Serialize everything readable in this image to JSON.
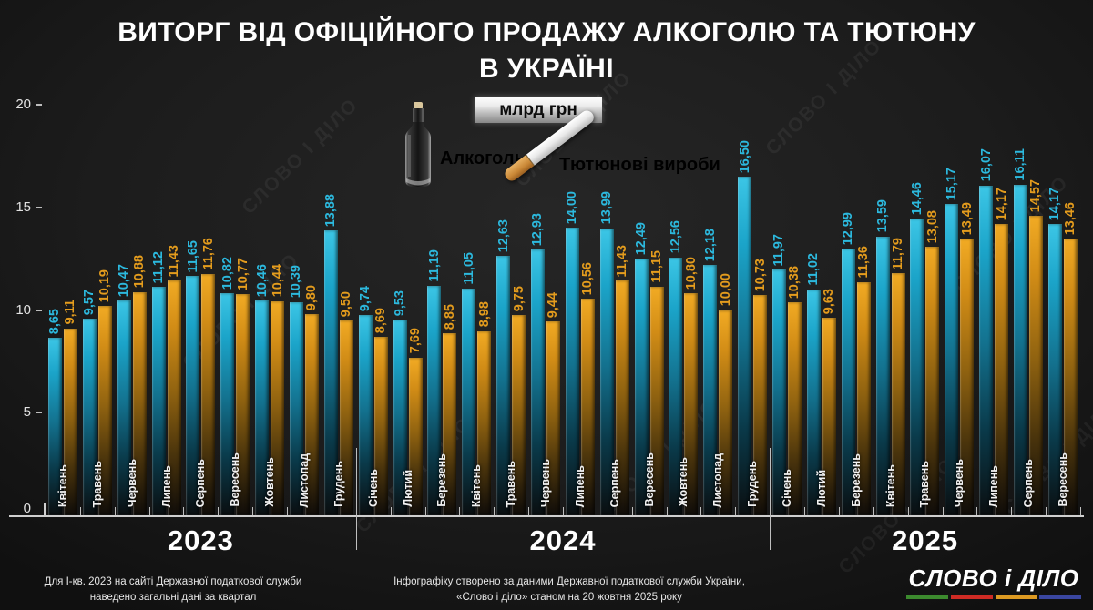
{
  "title": {
    "line1": "ВИТОРГ ВІД ОФІЦІЙНОГО ПРОДАЖУ АЛКОГОЛЮ ТА ТЮТЮНУ",
    "line2": "В УКРАЇНІ"
  },
  "legend": {
    "unit_label": "млрд грн",
    "alcohol_label": "Алкоголь",
    "tobacco_label": "Тютюнові вироби"
  },
  "colors": {
    "alcohol": "#2cb9de",
    "tobacco": "#e49c1d",
    "logo_underline": [
      "#3c8a2e",
      "#cf2b24",
      "#dd9a22",
      "#3a46a0"
    ]
  },
  "watermark_text": "СЛОВО І ДІЛО",
  "chart_data": {
    "type": "bar",
    "title": "ВИТОРГ ВІД ОФІЦІЙНОГО ПРОДАЖУ АЛКОГОЛЮ ТА ТЮТЮНУ В УКРАЇНІ",
    "unit": "млрд грн",
    "ylim": [
      0,
      20
    ],
    "yticks": [
      20,
      15,
      10,
      5,
      0
    ],
    "grid": false,
    "legend_position": "top",
    "series_names": [
      "Алкоголь",
      "Тютюнові вироби"
    ],
    "years": [
      {
        "year": "2023",
        "months": [
          {
            "month": "Квітень",
            "alcohol": 8.65,
            "tobacco": 9.11
          },
          {
            "month": "Травень",
            "alcohol": 9.57,
            "tobacco": 10.19
          },
          {
            "month": "Червень",
            "alcohol": 10.47,
            "tobacco": 10.88
          },
          {
            "month": "Липень",
            "alcohol": 11.12,
            "tobacco": 11.43
          },
          {
            "month": "Серпень",
            "alcohol": 11.65,
            "tobacco": 11.76
          },
          {
            "month": "Вересень",
            "alcohol": 10.82,
            "tobacco": 10.77
          },
          {
            "month": "Жовтень",
            "alcohol": 10.46,
            "tobacco": 10.44
          },
          {
            "month": "Листопад",
            "alcohol": 10.39,
            "tobacco": 9.8
          },
          {
            "month": "Грудень",
            "alcohol": 13.88,
            "tobacco": 9.5
          }
        ]
      },
      {
        "year": "2024",
        "months": [
          {
            "month": "Січень",
            "alcohol": 9.74,
            "tobacco": 8.69
          },
          {
            "month": "Лютий",
            "alcohol": 9.53,
            "tobacco": 7.69
          },
          {
            "month": "Березень",
            "alcohol": 11.19,
            "tobacco": 8.85
          },
          {
            "month": "Квітень",
            "alcohol": 11.05,
            "tobacco": 8.98
          },
          {
            "month": "Травень",
            "alcohol": 12.63,
            "tobacco": 9.75
          },
          {
            "month": "Червень",
            "alcohol": 12.93,
            "tobacco": 9.44
          },
          {
            "month": "Липень",
            "alcohol": 14.0,
            "tobacco": 10.56
          },
          {
            "month": "Серпень",
            "alcohol": 13.99,
            "tobacco": 11.43
          },
          {
            "month": "Вересень",
            "alcohol": 12.49,
            "tobacco": 11.15
          },
          {
            "month": "Жовтень",
            "alcohol": 12.56,
            "tobacco": 10.8
          },
          {
            "month": "Листопад",
            "alcohol": 12.18,
            "tobacco": 10.0
          },
          {
            "month": "Грудень",
            "alcohol": 16.5,
            "tobacco": 10.73
          }
        ]
      },
      {
        "year": "2025",
        "months": [
          {
            "month": "Січень",
            "alcohol": 11.97,
            "tobacco": 10.38
          },
          {
            "month": "Лютий",
            "alcohol": 11.02,
            "tobacco": 9.63
          },
          {
            "month": "Березень",
            "alcohol": 12.99,
            "tobacco": 11.36
          },
          {
            "month": "Квітень",
            "alcohol": 13.59,
            "tobacco": 11.79
          },
          {
            "month": "Травень",
            "alcohol": 14.46,
            "tobacco": 13.08
          },
          {
            "month": "Червень",
            "alcohol": 15.17,
            "tobacco": 13.49
          },
          {
            "month": "Липень",
            "alcohol": 16.07,
            "tobacco": 14.17
          },
          {
            "month": "Серпень",
            "alcohol": 16.11,
            "tobacco": 14.57
          },
          {
            "month": "Вересень",
            "alcohol": 14.17,
            "tobacco": 13.46
          }
        ]
      }
    ]
  },
  "footer": {
    "note_left_line1": "Для І-кв. 2023 на сайті Державної податкової служби",
    "note_left_line2": "наведено загальні дані за квартал",
    "note_center_line1": "Інфографіку створено за даними Державної податкової служби України,",
    "note_center_line2": "«Слово і діло» станом на 20 жовтня 2025 року",
    "logo_text": "СЛОВО і ДІЛО"
  }
}
